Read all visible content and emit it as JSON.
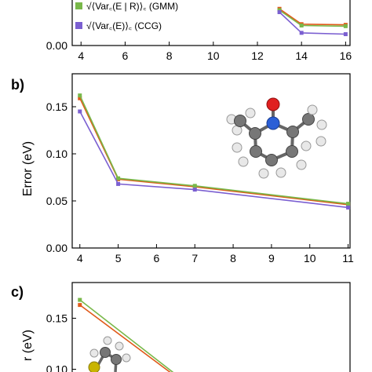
{
  "colors": {
    "orange": "#e05a1a",
    "green": "#79b84a",
    "purple": "#7b5fd1",
    "axis": "#000000"
  },
  "legend": [
    {
      "series": "GMM",
      "label": "√⟨Var꜀(E | R)⟩꜀ (GMM)",
      "color": "#79b84a"
    },
    {
      "series": "CCG",
      "label": "√⟨Var꜀(E)⟩꜀ (CCG)",
      "color": "#7b5fd1"
    }
  ],
  "chart_data": [
    {
      "type": "line",
      "panel_label": "",
      "xlabel": "",
      "ylabel": "",
      "x_ticks": [
        "4",
        "6",
        "8",
        "10",
        "12",
        "14",
        "16"
      ],
      "y_ticks": [
        "0.00"
      ],
      "xlim": [
        3.6,
        16.2
      ],
      "ylim": [
        0.0,
        0.08
      ],
      "series": [
        {
          "color": "#e05a1a",
          "x": [
            13,
            14,
            16
          ],
          "y": [
            0.055,
            0.032,
            0.031
          ]
        },
        {
          "color": "#79b84a",
          "x": [
            13,
            14,
            16
          ],
          "y": [
            0.053,
            0.03,
            0.029
          ]
        },
        {
          "color": "#7b5fd1",
          "x": [
            13,
            14,
            16
          ],
          "y": [
            0.05,
            0.019,
            0.017
          ]
        }
      ]
    },
    {
      "type": "line",
      "panel_label": "b)",
      "xlabel": "",
      "ylabel": "Error (eV)",
      "x_ticks": [
        "4",
        "5",
        "6",
        "7",
        "8",
        "9",
        "10",
        "11"
      ],
      "y_ticks": [
        "0.00",
        "0.05",
        "0.10",
        "0.15"
      ],
      "xlim": [
        3.8,
        11.05
      ],
      "ylim": [
        0.0,
        0.185
      ],
      "series": [
        {
          "color": "#e05a1a",
          "x": [
            4,
            5,
            7,
            11
          ],
          "y": [
            0.159,
            0.073,
            0.065,
            0.046
          ]
        },
        {
          "color": "#79b84a",
          "x": [
            4,
            5,
            7,
            11
          ],
          "y": [
            0.162,
            0.074,
            0.066,
            0.047
          ]
        },
        {
          "color": "#7b5fd1",
          "x": [
            4,
            5,
            7,
            11
          ],
          "y": [
            0.145,
            0.068,
            0.062,
            0.043
          ]
        }
      ]
    },
    {
      "type": "line",
      "panel_label": "c)",
      "xlabel": "",
      "ylabel": "r (eV)",
      "x_ticks": [],
      "y_ticks": [
        "0.10",
        "0.15"
      ],
      "xlim": [
        3.8,
        11.05
      ],
      "ylim": [
        0.085,
        0.185
      ],
      "series": [
        {
          "color": "#e05a1a",
          "x": [
            4,
            6.5,
            11
          ],
          "y": [
            0.163,
            0.093,
            0.094
          ]
        },
        {
          "color": "#79b84a",
          "x": [
            4,
            6.5,
            11
          ],
          "y": [
            0.168,
            0.095,
            0.095
          ]
        }
      ]
    }
  ]
}
